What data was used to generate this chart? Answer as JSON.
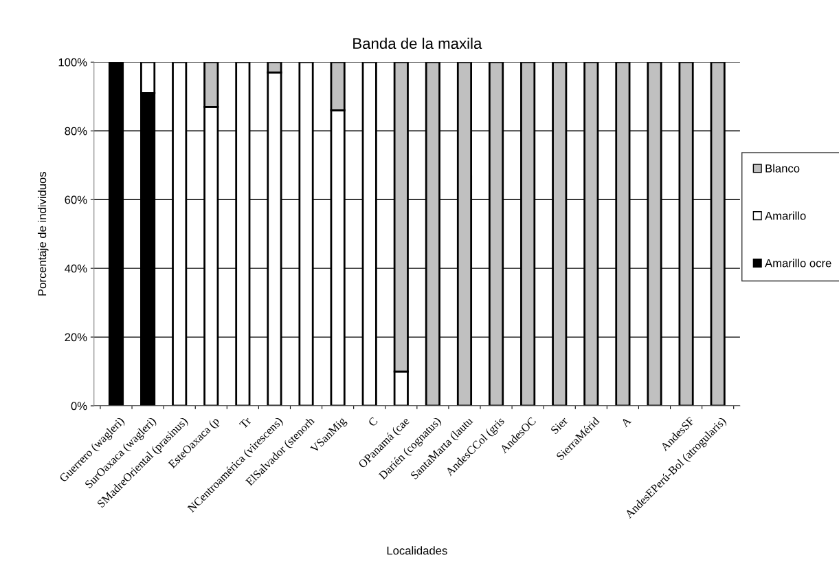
{
  "chart_data": {
    "type": "bar",
    "stacked": true,
    "title": "Banda de la maxila",
    "xlabel": "Localidades",
    "ylabel": "Porcentaje de individuos",
    "categories": [
      "Guerrero (wagleri)",
      "SurOaxaca (wagleri)",
      "SMadreOriental (prasinus)",
      "EsteOaxaca (p",
      "Tr",
      "NCentroamérica (virescens)",
      "ElSalvador (stenorh",
      "VSanMig",
      "C",
      "OPanamá (cae",
      "Darién (cognatus)",
      "SantaMarta (lautu",
      "AndesCCol (gris",
      "AndesOC",
      "Sier",
      "SierraMérid",
      "A",
      null,
      "AndesSF",
      "AndesEPerú-Bol (atrogularis)"
    ],
    "series": [
      {
        "name": "Amarillo ocre",
        "color": "#000000",
        "values": [
          100,
          91,
          0,
          0,
          0,
          0,
          0,
          0,
          0,
          0,
          0,
          0,
          0,
          0,
          0,
          0,
          0,
          0,
          0,
          0
        ]
      },
      {
        "name": "Amarillo",
        "color": "#ffffff",
        "values": [
          0,
          9,
          100,
          87,
          100,
          97,
          100,
          86,
          100,
          10,
          0,
          0,
          0,
          0,
          0,
          0,
          0,
          0,
          0,
          0
        ]
      },
      {
        "name": "Blanco",
        "color": "#c0c0c0",
        "values": [
          0,
          0,
          0,
          13,
          0,
          3,
          0,
          14,
          0,
          90,
          100,
          100,
          100,
          100,
          100,
          100,
          100,
          100,
          100,
          100
        ]
      }
    ],
    "ylim": [
      0,
      100
    ],
    "yticks": [
      {
        "value": 0,
        "label": "0%"
      },
      {
        "value": 20,
        "label": "20%"
      },
      {
        "value": 40,
        "label": "40%"
      },
      {
        "value": 60,
        "label": "60%"
      },
      {
        "value": 80,
        "label": "80%"
      },
      {
        "value": 100,
        "label": "100%"
      }
    ],
    "grid": "y",
    "legend": "right"
  }
}
